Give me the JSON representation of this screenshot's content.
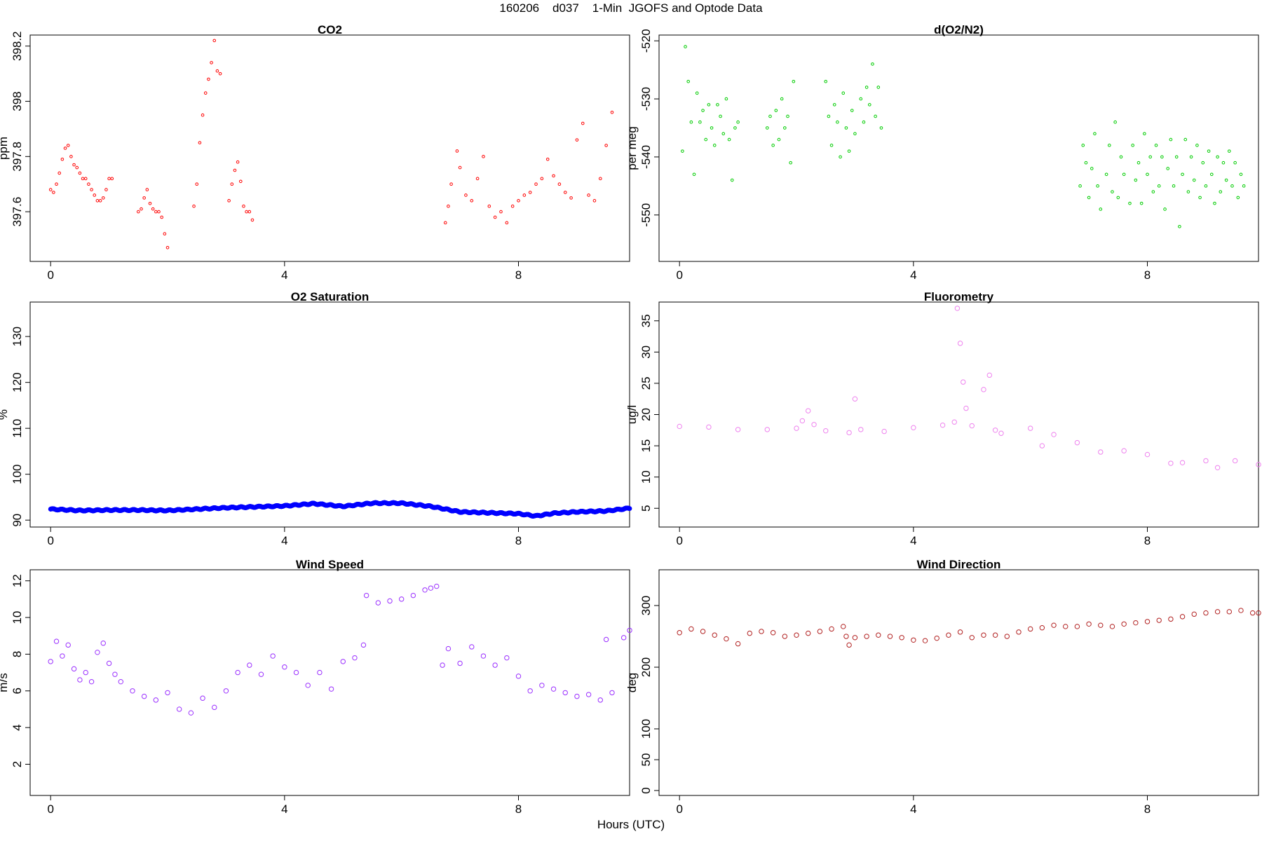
{
  "page": {
    "title": "160206    d037    1-Min  JGOFS and Optode Data",
    "xlabel": "Hours (UTC)"
  },
  "chart_data": [
    {
      "id": "co2",
      "type": "scatter",
      "title": "CO2",
      "ylabel": "ppm",
      "color": "#ff0000",
      "marker": "small-open-circle",
      "xlim": [
        -0.35,
        9.9
      ],
      "ylim": [
        397.42,
        398.24
      ],
      "xticks": [
        0,
        4,
        8
      ],
      "yticks": [
        397.6,
        397.8,
        398.0,
        398.2
      ],
      "series": [
        {
          "x": [
            0.0,
            0.05,
            0.1,
            0.15,
            0.2,
            0.25,
            0.3,
            0.35,
            0.4,
            0.45,
            0.5,
            0.55,
            0.6,
            0.65,
            0.7,
            0.75,
            0.8,
            0.85,
            0.9,
            0.95,
            1.0,
            1.05,
            1.5,
            1.55,
            1.6,
            1.65,
            1.7,
            1.75,
            1.8,
            1.85,
            1.9,
            1.95,
            2.0,
            2.45,
            2.5,
            2.55,
            2.6,
            2.65,
            2.7,
            2.75,
            2.8,
            2.85,
            2.9,
            3.05,
            3.1,
            3.15,
            3.2,
            3.25,
            3.3,
            3.35,
            3.4,
            3.45,
            6.75,
            6.8,
            6.85,
            6.95,
            7.0,
            7.1,
            7.2,
            7.3,
            7.4,
            7.5,
            7.6,
            7.7,
            7.8,
            7.9,
            8.0,
            8.1,
            8.2,
            8.3,
            8.4,
            8.5,
            8.6,
            8.7,
            8.8,
            8.9,
            9.0,
            9.1,
            9.2,
            9.3,
            9.4,
            9.5,
            9.6
          ],
          "y": [
            397.68,
            397.67,
            397.7,
            397.74,
            397.79,
            397.83,
            397.84,
            397.8,
            397.77,
            397.76,
            397.74,
            397.72,
            397.72,
            397.7,
            397.68,
            397.66,
            397.64,
            397.64,
            397.65,
            397.68,
            397.72,
            397.72,
            397.6,
            397.61,
            397.65,
            397.68,
            397.63,
            397.61,
            397.6,
            397.6,
            397.58,
            397.52,
            397.47,
            397.62,
            397.7,
            397.85,
            397.95,
            398.03,
            398.08,
            398.14,
            398.22,
            398.11,
            398.1,
            397.64,
            397.7,
            397.75,
            397.78,
            397.71,
            397.62,
            397.6,
            397.6,
            397.57,
            397.56,
            397.62,
            397.7,
            397.82,
            397.76,
            397.66,
            397.64,
            397.72,
            397.8,
            397.62,
            397.58,
            397.6,
            397.56,
            397.62,
            397.64,
            397.66,
            397.67,
            397.7,
            397.72,
            397.79,
            397.73,
            397.7,
            397.67,
            397.65,
            397.86,
            397.92,
            397.66,
            397.64,
            397.72,
            397.84,
            397.96
          ]
        }
      ]
    },
    {
      "id": "do2n2",
      "type": "scatter",
      "title": "d(O2/N2)",
      "ylabel": "per meg",
      "color": "#00cc00",
      "marker": "small-open-circle",
      "xlim": [
        -0.35,
        9.9
      ],
      "ylim": [
        -558,
        -519
      ],
      "xticks": [
        0,
        4,
        8
      ],
      "yticks": [
        -550,
        -540,
        -530,
        -520
      ],
      "series": [
        {
          "x": [
            0.05,
            0.1,
            0.15,
            0.2,
            0.25,
            0.3,
            0.35,
            0.4,
            0.45,
            0.5,
            0.55,
            0.6,
            0.65,
            0.7,
            0.75,
            0.8,
            0.85,
            0.9,
            0.95,
            1.0,
            1.5,
            1.55,
            1.6,
            1.65,
            1.7,
            1.75,
            1.8,
            1.85,
            1.9,
            1.95,
            2.5,
            2.55,
            2.6,
            2.65,
            2.7,
            2.75,
            2.8,
            2.85,
            2.9,
            2.95,
            3.0,
            3.1,
            3.15,
            3.2,
            3.25,
            3.3,
            3.35,
            3.4,
            3.45,
            6.85,
            6.9,
            6.95,
            7.0,
            7.05,
            7.1,
            7.15,
            7.2,
            7.3,
            7.35,
            7.4,
            7.45,
            7.5,
            7.55,
            7.6,
            7.7,
            7.75,
            7.8,
            7.85,
            7.9,
            7.95,
            8.0,
            8.05,
            8.1,
            8.15,
            8.2,
            8.25,
            8.3,
            8.35,
            8.4,
            8.45,
            8.5,
            8.55,
            8.6,
            8.65,
            8.7,
            8.75,
            8.8,
            8.85,
            8.9,
            8.95,
            9.0,
            9.05,
            9.1,
            9.15,
            9.2,
            9.25,
            9.3,
            9.35,
            9.4,
            9.45,
            9.5,
            9.55,
            9.6,
            9.65
          ],
          "y": [
            -539,
            -521,
            -527,
            -534,
            -543,
            -529,
            -534,
            -532,
            -537,
            -531,
            -535,
            -538,
            -531,
            -533,
            -536,
            -530,
            -537,
            -544,
            -535,
            -534,
            -535,
            -533,
            -538,
            -532,
            -537,
            -530,
            -535,
            -533,
            -541,
            -527,
            -527,
            -533,
            -538,
            -531,
            -534,
            -540,
            -529,
            -535,
            -539,
            -532,
            -536,
            -530,
            -534,
            -528,
            -531,
            -524,
            -533,
            -528,
            -535,
            -545,
            -538,
            -541,
            -547,
            -542,
            -536,
            -545,
            -549,
            -543,
            -538,
            -546,
            -534,
            -547,
            -540,
            -543,
            -548,
            -538,
            -544,
            -541,
            -548,
            -536,
            -543,
            -540,
            -546,
            -538,
            -545,
            -540,
            -549,
            -542,
            -537,
            -545,
            -540,
            -552,
            -543,
            -537,
            -546,
            -540,
            -544,
            -538,
            -547,
            -541,
            -545,
            -539,
            -543,
            -548,
            -540,
            -546,
            -541,
            -544,
            -539,
            -545,
            -541,
            -547,
            -543,
            -545
          ]
        }
      ]
    },
    {
      "id": "o2sat",
      "type": "scatter",
      "title": "O2 Saturation",
      "ylabel": "%",
      "color": "#0000ff",
      "marker": "dense-circles",
      "xlim": [
        -0.35,
        9.9
      ],
      "ylim": [
        88.5,
        137.5
      ],
      "xticks": [
        0,
        4,
        8
      ],
      "yticks": [
        90,
        100,
        110,
        120,
        130
      ],
      "series": [
        {
          "x": [
            0.0,
            0.5,
            1.0,
            1.5,
            2.0,
            2.5,
            3.0,
            3.5,
            4.0,
            4.5,
            5.0,
            5.5,
            6.0,
            6.5,
            7.0,
            7.5,
            8.0,
            8.3,
            8.6,
            9.0,
            9.5,
            9.9
          ],
          "y": [
            92.4,
            92.1,
            92.2,
            92.2,
            92.1,
            92.4,
            92.7,
            92.9,
            93.1,
            93.6,
            93.0,
            93.7,
            93.7,
            93.0,
            91.8,
            91.6,
            91.4,
            90.9,
            91.5,
            91.8,
            92.0,
            92.6
          ]
        }
      ]
    },
    {
      "id": "fluor",
      "type": "scatter",
      "title": "Fluorometry",
      "ylabel": "ug/l",
      "color": "#ee82ee",
      "marker": "open-circle",
      "xlim": [
        -0.35,
        9.9
      ],
      "ylim": [
        2,
        38
      ],
      "xticks": [
        0,
        4,
        8
      ],
      "yticks": [
        5,
        10,
        15,
        20,
        25,
        30,
        35
      ],
      "series": [
        {
          "x": [
            0.0,
            0.5,
            1.0,
            1.5,
            2.0,
            2.1,
            2.2,
            2.3,
            2.5,
            2.9,
            3.0,
            3.1,
            3.5,
            4.0,
            4.5,
            4.7,
            4.75,
            4.8,
            4.85,
            4.9,
            5.0,
            5.2,
            5.3,
            5.4,
            5.5,
            6.0,
            6.2,
            6.4,
            6.8,
            7.2,
            7.6,
            8.0,
            8.4,
            8.6,
            9.0,
            9.2,
            9.5,
            9.9
          ],
          "y": [
            18.1,
            18.0,
            17.6,
            17.6,
            17.8,
            19.0,
            20.6,
            18.4,
            17.4,
            17.1,
            22.5,
            17.6,
            17.3,
            17.9,
            18.3,
            18.8,
            37.0,
            31.4,
            25.2,
            21.0,
            18.2,
            24.0,
            26.3,
            17.5,
            17.0,
            17.8,
            15.0,
            16.8,
            15.5,
            14.0,
            14.2,
            13.6,
            12.2,
            12.3,
            12.6,
            11.5,
            12.6,
            12.0
          ]
        }
      ]
    },
    {
      "id": "windspeed",
      "type": "scatter",
      "title": "Wind Speed",
      "ylabel": "m/s",
      "color": "#9b30ff",
      "marker": "open-circle",
      "xlim": [
        -0.35,
        9.9
      ],
      "ylim": [
        0.3,
        12.6
      ],
      "xticks": [
        0,
        4,
        8
      ],
      "yticks": [
        2,
        4,
        6,
        8,
        10,
        12
      ],
      "series": [
        {
          "x": [
            0.0,
            0.1,
            0.2,
            0.3,
            0.4,
            0.5,
            0.6,
            0.7,
            0.8,
            0.9,
            1.0,
            1.1,
            1.2,
            1.4,
            1.6,
            1.8,
            2.0,
            2.2,
            2.4,
            2.6,
            2.8,
            3.0,
            3.2,
            3.4,
            3.6,
            3.8,
            4.0,
            4.2,
            4.4,
            4.6,
            4.8,
            5.0,
            5.2,
            5.35,
            5.4,
            5.6,
            5.8,
            6.0,
            6.2,
            6.4,
            6.5,
            6.6,
            6.7,
            6.8,
            7.0,
            7.2,
            7.4,
            7.6,
            7.8,
            8.0,
            8.2,
            8.4,
            8.6,
            8.8,
            9.0,
            9.2,
            9.4,
            9.5,
            9.6,
            9.8,
            9.9
          ],
          "y": [
            7.6,
            8.7,
            7.9,
            8.5,
            7.2,
            6.6,
            7.0,
            6.5,
            8.1,
            8.6,
            7.5,
            6.9,
            6.5,
            6.0,
            5.7,
            5.5,
            5.9,
            5.0,
            4.8,
            5.6,
            5.1,
            6.0,
            7.0,
            7.4,
            6.9,
            7.9,
            7.3,
            7.0,
            6.3,
            7.0,
            6.1,
            7.6,
            7.8,
            8.5,
            11.2,
            10.8,
            10.9,
            11.0,
            11.2,
            11.5,
            11.6,
            11.7,
            7.4,
            8.3,
            7.5,
            8.4,
            7.9,
            7.4,
            7.8,
            6.8,
            6.0,
            6.3,
            6.1,
            5.9,
            5.7,
            5.8,
            5.5,
            8.8,
            5.9,
            8.9,
            9.3
          ]
        }
      ]
    },
    {
      "id": "winddir",
      "type": "scatter",
      "title": "Wind Direction",
      "ylabel": "deg",
      "color": "#b22222",
      "marker": "open-circle",
      "xlim": [
        -0.35,
        9.9
      ],
      "ylim": [
        -8,
        358
      ],
      "xticks": [
        0,
        4,
        8
      ],
      "yticks": [
        0,
        50,
        100,
        200,
        300
      ],
      "series": [
        {
          "x": [
            0.0,
            0.2,
            0.4,
            0.6,
            0.8,
            1.0,
            1.2,
            1.4,
            1.6,
            1.8,
            2.0,
            2.2,
            2.4,
            2.6,
            2.8,
            2.85,
            2.9,
            3.0,
            3.2,
            3.4,
            3.6,
            3.8,
            4.0,
            4.2,
            4.4,
            4.6,
            4.8,
            5.0,
            5.2,
            5.4,
            5.6,
            5.8,
            6.0,
            6.2,
            6.4,
            6.6,
            6.8,
            7.0,
            7.2,
            7.4,
            7.6,
            7.8,
            8.0,
            8.2,
            8.4,
            8.6,
            8.8,
            9.0,
            9.2,
            9.4,
            9.6,
            9.8,
            9.9
          ],
          "y": [
            256,
            262,
            258,
            252,
            246,
            238,
            255,
            258,
            256,
            250,
            252,
            255,
            258,
            262,
            266,
            250,
            236,
            248,
            250,
            252,
            250,
            248,
            244,
            243,
            247,
            252,
            257,
            248,
            252,
            252,
            250,
            257,
            262,
            264,
            268,
            266,
            266,
            270,
            268,
            266,
            270,
            272,
            274,
            276,
            278,
            282,
            286,
            288,
            290,
            290,
            292,
            288,
            288
          ]
        }
      ]
    }
  ]
}
